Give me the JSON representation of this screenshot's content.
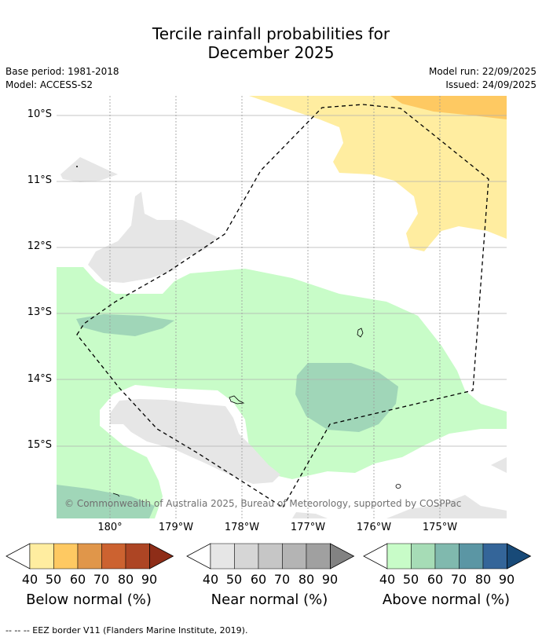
{
  "title_line1": "Tercile rainfall probabilities for",
  "title_line2": "December 2025",
  "base_period": "Base period: 1981-2018",
  "model": "Model: ACCESS-S2",
  "model_run": "Model run: 22/09/2025",
  "issued": "Issued: 24/09/2025",
  "copyright": "© Commonwealth of Australia 2025, Bureau of Meteorology, supported by COSPPac",
  "lat_labels": [
    "10°S",
    "11°S",
    "12°S",
    "13°S",
    "14°S",
    "15°S"
  ],
  "lon_labels": [
    "180°",
    "179°W",
    "178°W",
    "177°W",
    "176°W",
    "175°W"
  ],
  "colorbars": [
    {
      "title": "Below normal (%)",
      "ticks": [
        "40",
        "50",
        "60",
        "70",
        "80",
        "90"
      ],
      "colors": [
        "#ffeda0",
        "#fec962",
        "#e0964a",
        "#cc6230",
        "#ad4524",
        "#8e2d18"
      ]
    },
    {
      "title": "Near normal (%)",
      "ticks": [
        "40",
        "50",
        "60",
        "70",
        "80",
        "90"
      ],
      "colors": [
        "#e6e6e6",
        "#d6d6d6",
        "#c6c6c6",
        "#b4b4b4",
        "#a0a0a0",
        "#828282"
      ]
    },
    {
      "title": "Above normal (%)",
      "ticks": [
        "40",
        "50",
        "60",
        "70",
        "80",
        "90"
      ],
      "colors": [
        "#c8fcc8",
        "#a6dcb6",
        "#80b9ae",
        "#5b96a4",
        "#346599",
        "#184a78"
      ]
    }
  ],
  "footer": "-- -- -- EEZ border V11 (Flanders Marine Institute, 2019)."
}
